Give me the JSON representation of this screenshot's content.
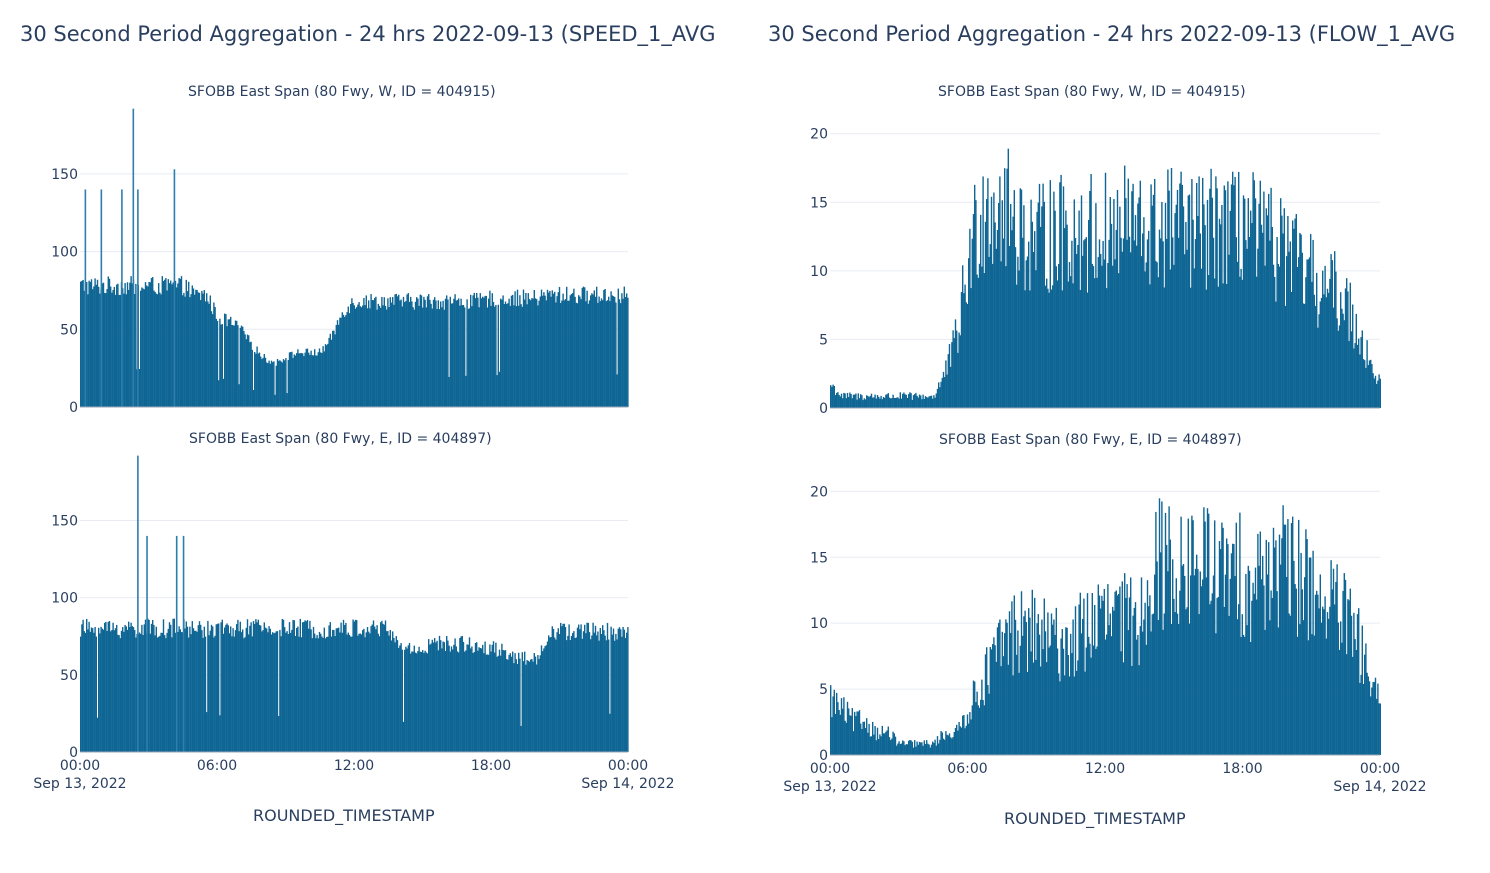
{
  "left": {
    "title": "30 Second Period Aggregation - 24 hrs 2022-09-13 (SPEED_1_AVG",
    "xlabel": "ROUNDED_TIMESTAMP"
  },
  "right": {
    "title": "30 Second Period Aggregation - 24 hrs 2022-09-13 (FLOW_1_AVG",
    "xlabel": "ROUNDED_TIMESTAMP"
  },
  "bar_color": "#0f6694",
  "grid_color": "#e8ecf2",
  "chart_data": [
    {
      "type": "bar",
      "panel": "left-top",
      "title": "SFOBB East Span (80 Fwy, W, ID = 404915)",
      "xlabel": "",
      "ylabel": "",
      "x_range": [
        "2022-09-13 00:00",
        "2022-09-14 00:00"
      ],
      "x_ticks": [
        "00:00",
        "06:00",
        "12:00",
        "18:00",
        "00:00"
      ],
      "x_tick_dates": [
        "Sep 13, 2022",
        "",
        "",
        "",
        "Sep 14, 2022"
      ],
      "ylim": [
        0,
        195
      ],
      "y_ticks": [
        0,
        50,
        100,
        150
      ],
      "hours": [
        0,
        0.5,
        1,
        1.5,
        2,
        2.5,
        3,
        3.5,
        4,
        4.5,
        5,
        5.5,
        6,
        6.5,
        7,
        7.5,
        8,
        8.5,
        9,
        9.5,
        10,
        10.5,
        11,
        11.5,
        12,
        12.5,
        13,
        13.5,
        14,
        14.5,
        15,
        15.5,
        16,
        16.5,
        17,
        17.5,
        18,
        18.5,
        19,
        19.5,
        20,
        20.5,
        21,
        21.5,
        22,
        22.5,
        23,
        23.5,
        24
      ],
      "values": [
        78,
        78,
        78,
        78,
        78,
        78,
        78,
        78,
        78,
        78,
        72,
        72,
        58,
        55,
        50,
        40,
        32,
        28,
        32,
        35,
        35,
        35,
        45,
        62,
        68,
        68,
        68,
        68,
        68,
        68,
        68,
        68,
        68,
        68,
        68,
        68,
        70,
        70,
        70,
        70,
        70,
        72,
        72,
        72,
        72,
        72,
        72,
        72,
        72
      ],
      "spikes": [
        {
          "x": 0.2,
          "y": 140
        },
        {
          "x": 0.9,
          "y": 140
        },
        {
          "x": 1.8,
          "y": 140
        },
        {
          "x": 2.3,
          "y": 192
        },
        {
          "x": 2.5,
          "y": 140
        },
        {
          "x": 4.1,
          "y": 153
        }
      ]
    },
    {
      "type": "bar",
      "panel": "left-bottom",
      "title": "SFOBB East Span (80 Fwy, E, ID = 404897)",
      "xlabel": "ROUNDED_TIMESTAMP",
      "ylabel": "",
      "x_range": [
        "2022-09-13 00:00",
        "2022-09-14 00:00"
      ],
      "x_ticks": [
        "00:00",
        "06:00",
        "12:00",
        "18:00",
        "00:00"
      ],
      "x_tick_dates": [
        "Sep 13, 2022",
        "",
        "",
        "",
        "Sep 14, 2022"
      ],
      "ylim": [
        0,
        195
      ],
      "y_ticks": [
        0,
        50,
        100,
        150
      ],
      "hours": [
        0,
        0.5,
        1,
        1.5,
        2,
        2.5,
        3,
        3.5,
        4,
        4.5,
        5,
        5.5,
        6,
        6.5,
        7,
        7.5,
        8,
        8.5,
        9,
        9.5,
        10,
        10.5,
        11,
        11.5,
        12,
        12.5,
        13,
        13.5,
        14,
        14.5,
        15,
        15.5,
        16,
        16.5,
        17,
        17.5,
        18,
        18.5,
        19,
        19.5,
        20,
        20.5,
        21,
        21.5,
        22,
        22.5,
        23,
        23.5,
        24
      ],
      "values": [
        80,
        80,
        80,
        80,
        80,
        80,
        80,
        80,
        80,
        80,
        80,
        80,
        80,
        80,
        80,
        80,
        80,
        80,
        80,
        80,
        80,
        80,
        80,
        80,
        80,
        80,
        80,
        80,
        67,
        67,
        67,
        70,
        70,
        70,
        70,
        68,
        68,
        65,
        62,
        60,
        60,
        78,
        78,
        78,
        78,
        78,
        78,
        78,
        78
      ],
      "spikes": [
        {
          "x": 2.5,
          "y": 192
        },
        {
          "x": 2.9,
          "y": 140
        },
        {
          "x": 4.2,
          "y": 140
        },
        {
          "x": 4.5,
          "y": 140
        }
      ]
    },
    {
      "type": "bar",
      "panel": "right-top",
      "title": "SFOBB East Span (80 Fwy, W, ID = 404915)",
      "xlabel": "",
      "ylabel": "",
      "x_range": [
        "2022-09-13 00:00",
        "2022-09-14 00:00"
      ],
      "x_ticks": [
        "00:00",
        "06:00",
        "12:00",
        "18:00",
        "00:00"
      ],
      "x_tick_dates": [
        "Sep 13, 2022",
        "",
        "",
        "",
        "Sep 14, 2022"
      ],
      "ylim": [
        0,
        21
      ],
      "y_ticks": [
        0,
        5,
        10,
        15,
        20
      ],
      "hours": [
        0,
        0.5,
        1,
        1.5,
        2,
        2.5,
        3,
        3.5,
        4,
        4.5,
        5,
        5.5,
        6,
        6.5,
        7,
        7.5,
        8,
        8.5,
        9,
        9.5,
        10,
        10.5,
        11,
        11.5,
        12,
        12.5,
        13,
        13.5,
        14,
        14.5,
        15,
        15.5,
        16,
        16.5,
        17,
        17.5,
        18,
        18.5,
        19,
        19.5,
        20,
        20.5,
        21,
        21.5,
        22,
        22.5,
        23,
        23.5,
        24
      ],
      "values": [
        2,
        1,
        1,
        1,
        1,
        1,
        1,
        1,
        1,
        1,
        3,
        6,
        12,
        17,
        18,
        17,
        16,
        15,
        14,
        15,
        15,
        15,
        15,
        15,
        15,
        15,
        16,
        15,
        15,
        15,
        16,
        15,
        15,
        15,
        16,
        15,
        16,
        15,
        14,
        14,
        13,
        12,
        11,
        10,
        10,
        9,
        7,
        4,
        2
      ]
    },
    {
      "type": "bar",
      "panel": "right-bottom",
      "title": "SFOBB East Span (80 Fwy, E, ID = 404897)",
      "xlabel": "ROUNDED_TIMESTAMP",
      "ylabel": "",
      "x_range": [
        "2022-09-13 00:00",
        "2022-09-14 00:00"
      ],
      "x_ticks": [
        "00:00",
        "06:00",
        "12:00",
        "18:00",
        "00:00"
      ],
      "x_tick_dates": [
        "Sep 13, 2022",
        "",
        "",
        "",
        "Sep 14, 2022"
      ],
      "ylim": [
        0,
        22
      ],
      "y_ticks": [
        0,
        5,
        10,
        15,
        20
      ],
      "hours": [
        0,
        0.5,
        1,
        1.5,
        2,
        2.5,
        3,
        3.5,
        4,
        4.5,
        5,
        5.5,
        6,
        6.5,
        7,
        7.5,
        8,
        8.5,
        9,
        9.5,
        10,
        10.5,
        11,
        11.5,
        12,
        12.5,
        13,
        13.5,
        14,
        14.5,
        15,
        15.5,
        16,
        16.5,
        17,
        17.5,
        18,
        18.5,
        19,
        19.5,
        20,
        20.5,
        21,
        21.5,
        22,
        22.5,
        23,
        23.5,
        24
      ],
      "values": [
        5,
        4,
        3,
        3,
        2,
        2,
        1,
        1,
        1,
        1,
        2,
        2,
        4,
        6,
        8,
        10,
        11,
        11,
        11,
        10,
        10,
        10,
        11,
        12,
        12,
        12,
        12,
        12,
        17,
        17,
        17,
        16,
        17,
        17,
        16,
        16,
        16,
        15,
        17,
        17,
        16,
        16,
        15,
        14,
        13,
        12,
        10,
        7,
        4
      ]
    }
  ]
}
